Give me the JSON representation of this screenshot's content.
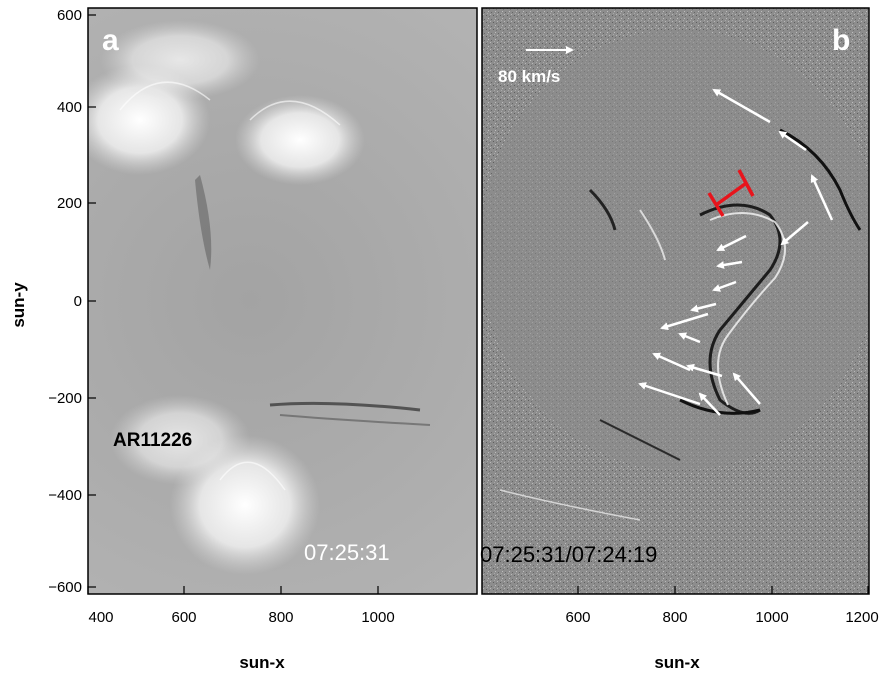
{
  "figure": {
    "y_axis_label": "sun-y",
    "panels": [
      {
        "id": "a",
        "letter": "a",
        "timestamp": "07:25:31",
        "annotation": "AR11226",
        "x_axis_label": "sun-x",
        "x_ticks": [
          "400",
          "600",
          "800",
          "1000"
        ],
        "y_ticks": [
          "600",
          "400",
          "200",
          "0",
          "−200",
          "−400",
          "−600"
        ],
        "x_range": [
          400,
          1200
        ],
        "y_range": [
          -620,
          620
        ],
        "image_kind": "EUV intensity image, solar limb",
        "colors": {
          "background": "#a8a8a8",
          "bright_region": "#ffffff",
          "off_limb": "#303030"
        }
      },
      {
        "id": "b",
        "letter": "b",
        "timestamp": "07:25:31/07:24:19",
        "scale_label": "80 km/s",
        "x_axis_label": "sun-x",
        "x_ticks": [
          "600",
          "800",
          "1000",
          "1200"
        ],
        "x_range": [
          400,
          1200
        ],
        "y_range": [
          -620,
          620
        ],
        "image_kind": "running-difference image",
        "colors": {
          "background": "#8c8c8c",
          "arrows": "#ffffff",
          "marker": "#e8141c"
        }
      }
    ]
  }
}
